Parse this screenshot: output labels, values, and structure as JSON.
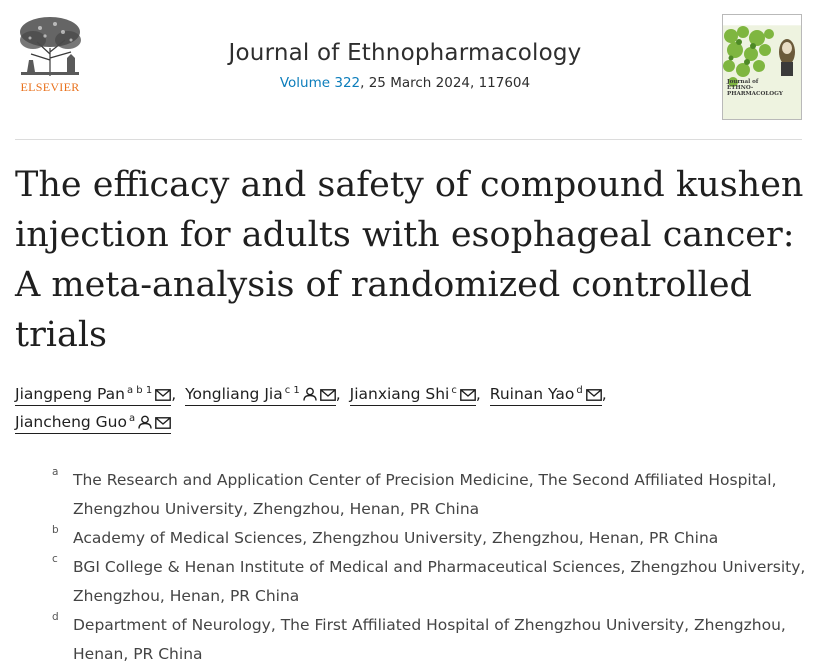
{
  "publisher": {
    "name": "ELSEVIER",
    "logo_icon": "elsevier-tree-logo"
  },
  "journal": {
    "title": "Journal of Ethnopharmacology",
    "volume_link": "Volume 322",
    "issue_detail": ", 25 March 2024, 117604",
    "cover_title": "Journal of\nETHNO-\nPHARMACOLOGY"
  },
  "article": {
    "title": "The efficacy and safety of compound kushen injection for adults with esophageal cancer: A meta-analysis of randomized controlled trials"
  },
  "authors": [
    {
      "name": "Jiangpeng Pan",
      "sup": "a b 1",
      "icons": [
        "mail-icon"
      ]
    },
    {
      "name": "Yongliang Jia",
      "sup": "c 1",
      "icons": [
        "person-icon",
        "mail-icon"
      ]
    },
    {
      "name": "Jianxiang Shi",
      "sup": "c",
      "icons": [
        "mail-icon"
      ]
    },
    {
      "name": "Ruinan Yao",
      "sup": "d",
      "icons": [
        "mail-icon"
      ]
    },
    {
      "name": "Jiancheng Guo",
      "sup": "a",
      "icons": [
        "person-icon",
        "mail-icon"
      ]
    }
  ],
  "affiliations": [
    {
      "label": "a",
      "text": "The Research and Application Center of Precision Medicine, The Second Affiliated Hospital, Zhengzhou University, Zhengzhou, Henan, PR China"
    },
    {
      "label": "b",
      "text": "Academy of Medical Sciences, Zhengzhou University, Zhengzhou, Henan, PR China"
    },
    {
      "label": "c",
      "text": "BGI College & Henan Institute of Medical and Pharmaceutical Sciences, Zhengzhou University, Zhengzhou, Henan, PR China"
    },
    {
      "label": "d",
      "text": "Department of Neurology, The First Affiliated Hospital of Zhengzhou University, Zhengzhou, Henan, PR China"
    }
  ],
  "colors": {
    "publisher_orange": "#e9711c",
    "link_blue": "#0c7dbb",
    "text": "#1f1f1f"
  }
}
